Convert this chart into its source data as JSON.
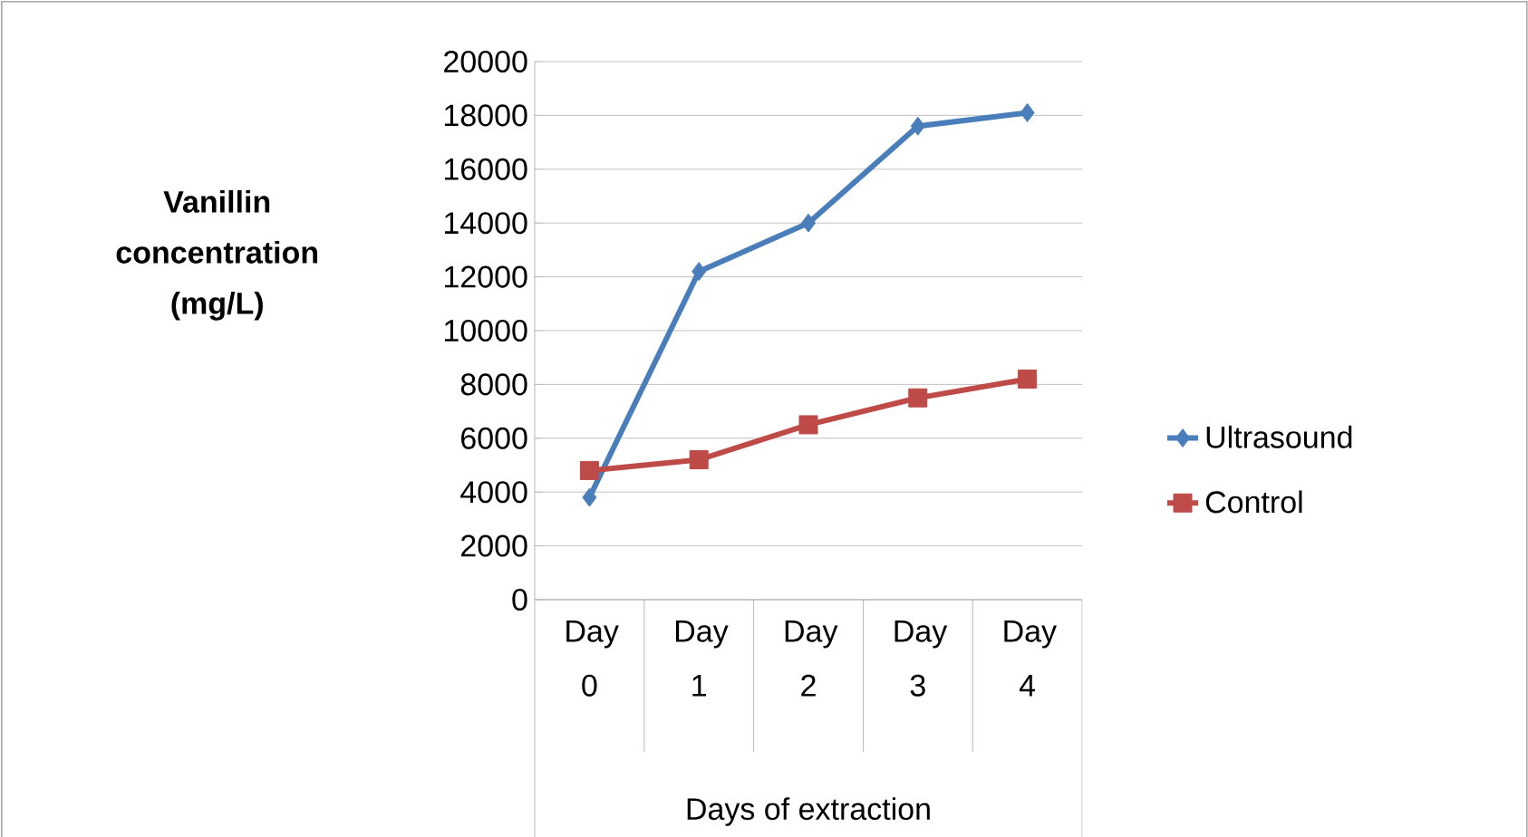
{
  "chart_data": {
    "type": "line",
    "xlabel": "Days of extraction",
    "ylabel": "Vanillin concentration (mg/L)",
    "categories": [
      "Day 0",
      "Day 1",
      "Day 2",
      "Day 3",
      "Day 4"
    ],
    "series": [
      {
        "name": "Ultrasound",
        "color": "#4a7ebb",
        "marker": "diamond",
        "values": [
          3800,
          12200,
          14000,
          17600,
          18100
        ]
      },
      {
        "name": "Control",
        "color": "#be4b48",
        "marker": "square",
        "values": [
          4800,
          5200,
          6500,
          7500,
          8200
        ]
      }
    ],
    "ylim": [
      0,
      20000
    ],
    "yticks": [
      0,
      2000,
      4000,
      6000,
      8000,
      10000,
      12000,
      14000,
      16000,
      18000,
      20000
    ],
    "grid": "y",
    "legend": "right"
  }
}
